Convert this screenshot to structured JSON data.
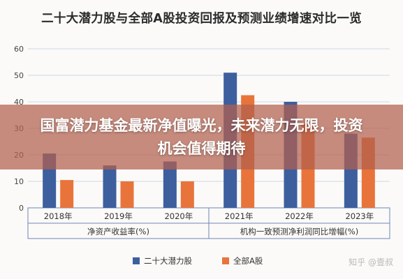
{
  "chart_data": {
    "type": "bar",
    "title": "二十大潜力股与全部A股投资回报及预测业绩增速对比一览",
    "categories": [
      "2018年",
      "2019年",
      "2020年",
      "2021年",
      "2022年",
      "2023年"
    ],
    "group_labels": [
      "净资产收益率(%)",
      "机构一致预测净利润同比增幅(%)"
    ],
    "series": [
      {
        "name": "二十大潜力股",
        "color": "#3d5f9e",
        "values": [
          20.5,
          16,
          17.5,
          51,
          40,
          28
        ]
      },
      {
        "name": "全部A股",
        "color": "#e8743b",
        "values": [
          10.5,
          10,
          10,
          42.5,
          31.5,
          26.5
        ]
      }
    ],
    "ylim": [
      0,
      60
    ],
    "yticks": [
      0,
      10,
      20,
      30,
      40,
      50,
      60
    ],
    "grid": true,
    "legend": "bottom-center"
  },
  "overlay": {
    "headline": "国富潜力基金最新净值曝光，未来潜力无限，投资机会值得期待"
  },
  "watermark": "知乎 @壹叔"
}
